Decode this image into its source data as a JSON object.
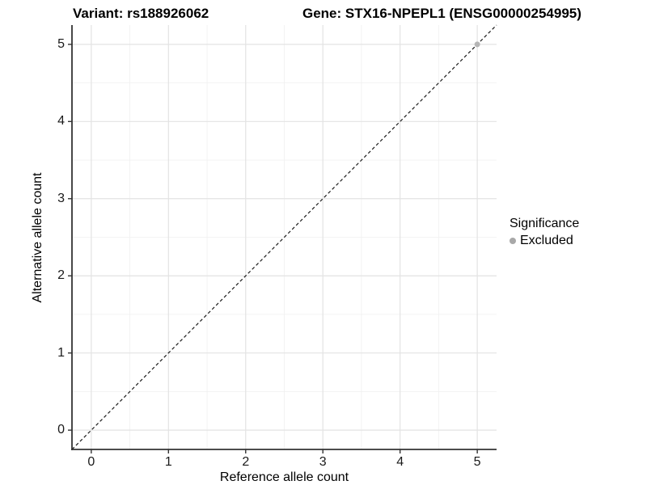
{
  "titles": {
    "variant": "Variant: rs188926062",
    "gene": "Gene: STX16-NPEPL1 (ENSG00000254995)"
  },
  "chart_data": {
    "type": "scatter",
    "xlabel": "Reference allele count",
    "ylabel": "Alternative allele count",
    "xlim": [
      -0.25,
      5.25
    ],
    "ylim": [
      -0.25,
      5.25
    ],
    "xticks": [
      0,
      1,
      2,
      3,
      4,
      5
    ],
    "yticks": [
      0,
      1,
      2,
      3,
      4,
      5
    ],
    "grid": {
      "major": true,
      "minor": true
    },
    "series": [
      {
        "name": "Excluded",
        "color": "#b5b5b5",
        "points": [
          {
            "x": 5,
            "y": 5
          }
        ]
      }
    ],
    "reference_line": {
      "type": "identity y=x",
      "style": "dashed",
      "color": "#1a1a1a"
    },
    "legend": {
      "title": "Significance",
      "position": "right",
      "entries": [
        {
          "label": "Excluded",
          "color": "#a8a8a8"
        }
      ]
    }
  },
  "colors": {
    "background": "#ffffff",
    "grid_major": "#e3e3e3",
    "grid_minor": "#f0f0f0",
    "axis_line": "#333333",
    "text": "#000000",
    "point": "#b5b5b5"
  }
}
